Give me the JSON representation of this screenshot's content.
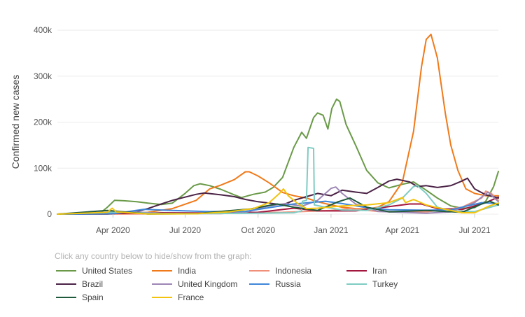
{
  "chart_data": {
    "type": "line",
    "ylabel": "Confirmed new cases",
    "xlabel": "",
    "ylim": [
      0,
      420000
    ],
    "yticks": [
      {
        "value": 0,
        "label": "0"
      },
      {
        "value": 100000,
        "label": "100k"
      },
      {
        "value": 200000,
        "label": "200k"
      },
      {
        "value": 300000,
        "label": "300k"
      },
      {
        "value": 400000,
        "label": "400k"
      }
    ],
    "xlim": [
      "2020-01-22",
      "2021-07-31"
    ],
    "xticks": [
      {
        "value": "2020-04-01",
        "label": "Apr 2020"
      },
      {
        "value": "2020-07-01",
        "label": "Jul 2020"
      },
      {
        "value": "2020-10-01",
        "label": "Oct 2020"
      },
      {
        "value": "2021-01-01",
        "label": "Jan 2021"
      },
      {
        "value": "2021-04-01",
        "label": "Apr 2021"
      },
      {
        "value": "2021-07-01",
        "label": "Jul 2021"
      }
    ],
    "grid": "horizontal",
    "legend_hint": "Click any country below to hide/show from the graph:",
    "series": [
      {
        "name": "United States",
        "color": "#6a9a48",
        "points": [
          [
            "2020-01-22",
            0
          ],
          [
            "2020-03-01",
            0
          ],
          [
            "2020-03-15",
            1000
          ],
          [
            "2020-03-25",
            15000
          ],
          [
            "2020-04-03",
            30000
          ],
          [
            "2020-04-15",
            29000
          ],
          [
            "2020-05-01",
            27000
          ],
          [
            "2020-05-15",
            24000
          ],
          [
            "2020-06-01",
            21000
          ],
          [
            "2020-06-15",
            24000
          ],
          [
            "2020-07-01",
            45000
          ],
          [
            "2020-07-12",
            62000
          ],
          [
            "2020-07-20",
            66000
          ],
          [
            "2020-08-01",
            62000
          ],
          [
            "2020-08-15",
            54000
          ],
          [
            "2020-09-01",
            42000
          ],
          [
            "2020-09-10",
            36000
          ],
          [
            "2020-09-25",
            43000
          ],
          [
            "2020-10-10",
            48000
          ],
          [
            "2020-10-20",
            58000
          ],
          [
            "2020-11-01",
            80000
          ],
          [
            "2020-11-15",
            145000
          ],
          [
            "2020-11-25",
            178000
          ],
          [
            "2020-12-01",
            165000
          ],
          [
            "2020-12-10",
            210000
          ],
          [
            "2020-12-15",
            220000
          ],
          [
            "2020-12-22",
            215000
          ],
          [
            "2020-12-28",
            185000
          ],
          [
            "2021-01-02",
            230000
          ],
          [
            "2021-01-08",
            250000
          ],
          [
            "2021-01-12",
            245000
          ],
          [
            "2021-01-20",
            195000
          ],
          [
            "2021-02-01",
            150000
          ],
          [
            "2021-02-15",
            95000
          ],
          [
            "2021-03-01",
            68000
          ],
          [
            "2021-03-15",
            57000
          ],
          [
            "2021-04-01",
            65000
          ],
          [
            "2021-04-15",
            70000
          ],
          [
            "2021-05-01",
            52000
          ],
          [
            "2021-05-15",
            35000
          ],
          [
            "2021-06-01",
            18000
          ],
          [
            "2021-06-15",
            13000
          ],
          [
            "2021-07-01",
            14000
          ],
          [
            "2021-07-15",
            28000
          ],
          [
            "2021-07-25",
            60000
          ],
          [
            "2021-07-31",
            93000
          ]
        ]
      },
      {
        "name": "India",
        "color": "#f07a1a",
        "points": [
          [
            "2020-01-22",
            0
          ],
          [
            "2020-03-15",
            0
          ],
          [
            "2020-04-15",
            1000
          ],
          [
            "2020-05-15",
            4000
          ],
          [
            "2020-06-15",
            12000
          ],
          [
            "2020-07-15",
            30000
          ],
          [
            "2020-08-01",
            55000
          ],
          [
            "2020-08-15",
            63000
          ],
          [
            "2020-09-01",
            75000
          ],
          [
            "2020-09-15",
            92000
          ],
          [
            "2020-09-20",
            92000
          ],
          [
            "2020-10-01",
            83000
          ],
          [
            "2020-10-15",
            68000
          ],
          [
            "2020-11-01",
            47000
          ],
          [
            "2020-11-15",
            40000
          ],
          [
            "2020-12-01",
            35000
          ],
          [
            "2020-12-15",
            27000
          ],
          [
            "2021-01-01",
            20000
          ],
          [
            "2021-01-15",
            15000
          ],
          [
            "2021-02-01",
            12000
          ],
          [
            "2021-02-15",
            11000
          ],
          [
            "2021-03-01",
            15000
          ],
          [
            "2021-03-15",
            27000
          ],
          [
            "2021-04-01",
            70000
          ],
          [
            "2021-04-15",
            180000
          ],
          [
            "2021-04-25",
            320000
          ],
          [
            "2021-05-01",
            380000
          ],
          [
            "2021-05-07",
            391000
          ],
          [
            "2021-05-15",
            340000
          ],
          [
            "2021-05-25",
            220000
          ],
          [
            "2021-06-01",
            150000
          ],
          [
            "2021-06-10",
            95000
          ],
          [
            "2021-06-20",
            55000
          ],
          [
            "2021-07-01",
            45000
          ],
          [
            "2021-07-15",
            40000
          ],
          [
            "2021-07-31",
            40000
          ]
        ]
      },
      {
        "name": "Indonesia",
        "color": "#f0907a",
        "points": [
          [
            "2020-01-22",
            0
          ],
          [
            "2020-04-15",
            200
          ],
          [
            "2020-07-01",
            1200
          ],
          [
            "2020-09-01",
            3000
          ],
          [
            "2020-11-01",
            4000
          ],
          [
            "2021-01-01",
            8000
          ],
          [
            "2021-01-25",
            12000
          ],
          [
            "2021-03-01",
            6000
          ],
          [
            "2021-05-01",
            5000
          ],
          [
            "2021-06-15",
            15000
          ],
          [
            "2021-07-10",
            35000
          ],
          [
            "2021-07-15",
            50000
          ],
          [
            "2021-07-22",
            45000
          ],
          [
            "2021-07-31",
            30000
          ]
        ]
      },
      {
        "name": "Iran",
        "color": "#a3163e",
        "points": [
          [
            "2020-01-22",
            0
          ],
          [
            "2020-03-20",
            2500
          ],
          [
            "2020-04-15",
            1500
          ],
          [
            "2020-06-01",
            3000
          ],
          [
            "2020-08-01",
            2500
          ],
          [
            "2020-10-01",
            4000
          ],
          [
            "2020-11-15",
            13000
          ],
          [
            "2020-12-15",
            7000
          ],
          [
            "2021-02-01",
            7000
          ],
          [
            "2021-04-10",
            22000
          ],
          [
            "2021-04-25",
            22000
          ],
          [
            "2021-05-15",
            12000
          ],
          [
            "2021-06-15",
            10000
          ],
          [
            "2021-07-15",
            25000
          ],
          [
            "2021-07-31",
            37000
          ]
        ]
      },
      {
        "name": "Brazil",
        "color": "#4b2346",
        "points": [
          [
            "2020-01-22",
            0
          ],
          [
            "2020-03-25",
            500
          ],
          [
            "2020-04-15",
            3000
          ],
          [
            "2020-05-01",
            6000
          ],
          [
            "2020-05-15",
            12000
          ],
          [
            "2020-06-01",
            22000
          ],
          [
            "2020-06-15",
            30000
          ],
          [
            "2020-07-01",
            37000
          ],
          [
            "2020-07-15",
            43000
          ],
          [
            "2020-07-25",
            46000
          ],
          [
            "2020-08-15",
            42000
          ],
          [
            "2020-09-01",
            38000
          ],
          [
            "2020-09-15",
            32000
          ],
          [
            "2020-10-01",
            27000
          ],
          [
            "2020-10-15",
            24000
          ],
          [
            "2020-11-01",
            20000
          ],
          [
            "2020-11-15",
            30000
          ],
          [
            "2020-12-01",
            38000
          ],
          [
            "2020-12-15",
            45000
          ],
          [
            "2021-01-01",
            40000
          ],
          [
            "2021-01-15",
            52000
          ],
          [
            "2021-02-01",
            48000
          ],
          [
            "2021-02-15",
            45000
          ],
          [
            "2021-03-01",
            58000
          ],
          [
            "2021-03-15",
            72000
          ],
          [
            "2021-03-25",
            76000
          ],
          [
            "2021-04-10",
            70000
          ],
          [
            "2021-04-20",
            60000
          ],
          [
            "2021-05-01",
            62000
          ],
          [
            "2021-05-15",
            58000
          ],
          [
            "2021-06-01",
            62000
          ],
          [
            "2021-06-15",
            72000
          ],
          [
            "2021-06-22",
            78000
          ],
          [
            "2021-07-01",
            55000
          ],
          [
            "2021-07-15",
            42000
          ],
          [
            "2021-07-31",
            35000
          ]
        ]
      },
      {
        "name": "United Kingdom",
        "color": "#9c86b5",
        "points": [
          [
            "2020-01-22",
            0
          ],
          [
            "2020-04-05",
            5000
          ],
          [
            "2020-05-01",
            4500
          ],
          [
            "2020-06-01",
            1500
          ],
          [
            "2020-08-15",
            1000
          ],
          [
            "2020-09-15",
            4000
          ],
          [
            "2020-10-15",
            18000
          ],
          [
            "2020-11-05",
            23000
          ],
          [
            "2020-11-25",
            17000
          ],
          [
            "2020-12-15",
            30000
          ],
          [
            "2021-01-01",
            56000
          ],
          [
            "2021-01-07",
            59000
          ],
          [
            "2021-01-15",
            45000
          ],
          [
            "2021-02-01",
            22000
          ],
          [
            "2021-03-01",
            6000
          ],
          [
            "2021-05-01",
            2000
          ],
          [
            "2021-06-01",
            5000
          ],
          [
            "2021-07-01",
            25000
          ],
          [
            "2021-07-18",
            48000
          ],
          [
            "2021-07-31",
            27000
          ]
        ]
      },
      {
        "name": "Russia",
        "color": "#3f86d8",
        "points": [
          [
            "2020-01-22",
            0
          ],
          [
            "2020-04-01",
            800
          ],
          [
            "2020-05-10",
            10500
          ],
          [
            "2020-06-15",
            8000
          ],
          [
            "2020-08-01",
            5500
          ],
          [
            "2020-09-15",
            6000
          ],
          [
            "2020-10-15",
            14000
          ],
          [
            "2020-11-15",
            22000
          ],
          [
            "2020-12-25",
            28000
          ],
          [
            "2021-01-15",
            23000
          ],
          [
            "2021-02-15",
            14000
          ],
          [
            "2021-03-15",
            9500
          ],
          [
            "2021-05-01",
            8500
          ],
          [
            "2021-06-01",
            9500
          ],
          [
            "2021-06-20",
            17000
          ],
          [
            "2021-07-10",
            25000
          ],
          [
            "2021-07-31",
            23000
          ]
        ]
      },
      {
        "name": "Turkey",
        "color": "#7fccc3",
        "points": [
          [
            "2020-01-22",
            0
          ],
          [
            "2020-04-10",
            4500
          ],
          [
            "2020-05-15",
            2000
          ],
          [
            "2020-07-01",
            1200
          ],
          [
            "2020-09-15",
            1700
          ],
          [
            "2020-11-15",
            3000
          ],
          [
            "2020-11-25",
            7000
          ],
          [
            "2020-11-26",
            28000
          ],
          [
            "2020-12-01",
            30000
          ],
          [
            "2020-12-03",
            145000
          ],
          [
            "2020-12-10",
            143000
          ],
          [
            "2020-12-11",
            20000
          ],
          [
            "2020-12-25",
            15000
          ],
          [
            "2021-01-15",
            9000
          ],
          [
            "2021-02-15",
            8000
          ],
          [
            "2021-03-15",
            20000
          ],
          [
            "2021-04-01",
            35000
          ],
          [
            "2021-04-15",
            60000
          ],
          [
            "2021-04-20",
            62000
          ],
          [
            "2021-05-01",
            45000
          ],
          [
            "2021-05-15",
            15000
          ],
          [
            "2021-06-01",
            7000
          ],
          [
            "2021-07-01",
            5500
          ],
          [
            "2021-07-31",
            20000
          ]
        ]
      },
      {
        "name": "Spain",
        "color": "#1f5a3c",
        "points": [
          [
            "2020-01-22",
            0
          ],
          [
            "2020-03-25",
            8000
          ],
          [
            "2020-04-15",
            5000
          ],
          [
            "2020-05-15",
            500
          ],
          [
            "2020-07-15",
            1000
          ],
          [
            "2020-08-15",
            6000
          ],
          [
            "2020-09-20",
            11000
          ],
          [
            "2020-10-25",
            22000
          ],
          [
            "2020-11-15",
            15000
          ],
          [
            "2020-12-15",
            8000
          ],
          [
            "2021-01-10",
            27000
          ],
          [
            "2021-01-25",
            35000
          ],
          [
            "2021-02-15",
            15000
          ],
          [
            "2021-03-15",
            5000
          ],
          [
            "2021-05-01",
            8000
          ],
          [
            "2021-06-15",
            4000
          ],
          [
            "2021-07-10",
            22000
          ],
          [
            "2021-07-20",
            28000
          ],
          [
            "2021-07-31",
            20000
          ]
        ]
      },
      {
        "name": "France",
        "color": "#f2c40f",
        "points": [
          [
            "2020-01-22",
            0
          ],
          [
            "2020-03-25",
            4000
          ],
          [
            "2020-03-31",
            13000
          ],
          [
            "2020-04-05",
            5000
          ],
          [
            "2020-05-15",
            500
          ],
          [
            "2020-07-15",
            800
          ],
          [
            "2020-08-25",
            5000
          ],
          [
            "2020-09-25",
            12000
          ],
          [
            "2020-10-15",
            25000
          ],
          [
            "2020-10-28",
            45000
          ],
          [
            "2020-11-02",
            55000
          ],
          [
            "2020-11-08",
            40000
          ],
          [
            "2020-11-20",
            23000
          ],
          [
            "2020-12-01",
            12000
          ],
          [
            "2020-12-15",
            13000
          ],
          [
            "2021-01-15",
            18000
          ],
          [
            "2021-02-15",
            20000
          ],
          [
            "2021-03-15",
            25000
          ],
          [
            "2021-04-01",
            36000
          ],
          [
            "2021-04-05",
            25000
          ],
          [
            "2021-04-15",
            32000
          ],
          [
            "2021-05-01",
            20000
          ],
          [
            "2021-05-15",
            14000
          ],
          [
            "2021-06-15",
            3000
          ],
          [
            "2021-07-01",
            3000
          ],
          [
            "2021-07-20",
            18000
          ],
          [
            "2021-07-31",
            24000
          ]
        ]
      }
    ]
  }
}
